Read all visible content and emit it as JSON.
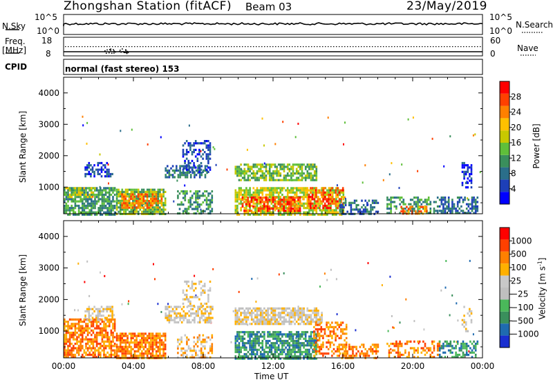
{
  "header": {
    "station": "Zhongshan Station (fitACF)",
    "beam": "Beam 03",
    "date": "23/May/2019",
    "cpid_label": "CPID",
    "cpid_text": "normal (fast stereo) 153"
  },
  "top_panels": {
    "nsky_label": "N.Sky",
    "nsky_ticks": [
      "10^5",
      "10^0"
    ],
    "nsearch_label": "N.Search",
    "nsearch_ticks": [
      "10^5",
      "10^0"
    ],
    "freq_label_1": "Freq.",
    "freq_label_2": "[MHz]",
    "freq_ticks": [
      "18",
      "8"
    ],
    "nave_label": "Nave",
    "nave_ticks": [
      "60",
      "0"
    ]
  },
  "chart_data": [
    {
      "type": "heatmap",
      "name": "power",
      "ylabel": "Slant Range [km]",
      "yticks": [
        1000,
        2000,
        3000,
        4000
      ],
      "ylim": [
        150,
        4500
      ],
      "xlim": [
        0,
        24
      ],
      "colorbar_label": "Power [dB]",
      "colorbar_ticks": [
        "28",
        "24",
        "20",
        "16",
        "12",
        "8",
        "4"
      ],
      "colors": [
        "#0000ff",
        "#1d3fb8",
        "#2a6e8a",
        "#3a8f5c",
        "#5fbf3a",
        "#c8c800",
        "#ffc000",
        "#ff8000",
        "#ff4000",
        "#ff0000"
      ],
      "regions": [
        {
          "x": [
            0.0,
            2.9
          ],
          "y": [
            150,
            1000
          ],
          "level": 3,
          "dens": 0.75
        },
        {
          "x": [
            0.1,
            1.8
          ],
          "y": [
            700,
            1000
          ],
          "level": 5,
          "dens": 0.5
        },
        {
          "x": [
            3.0,
            5.8
          ],
          "y": [
            150,
            950
          ],
          "level": 4,
          "dens": 0.8
        },
        {
          "x": [
            3.3,
            5.6
          ],
          "y": [
            350,
            800
          ],
          "level": 7,
          "dens": 0.6
        },
        {
          "x": [
            1.2,
            2.8
          ],
          "y": [
            1350,
            1800
          ],
          "level": 1,
          "dens": 0.5
        },
        {
          "x": [
            5.8,
            8.2
          ],
          "y": [
            1300,
            1700
          ],
          "level": 2,
          "dens": 0.6
        },
        {
          "x": [
            6.8,
            8.4
          ],
          "y": [
            1500,
            2500
          ],
          "level": 1,
          "dens": 0.45
        },
        {
          "x": [
            6.5,
            8.5
          ],
          "y": [
            150,
            900
          ],
          "level": 3,
          "dens": 0.5
        },
        {
          "x": [
            9.8,
            14.5
          ],
          "y": [
            1250,
            1750
          ],
          "level": 4,
          "dens": 0.7
        },
        {
          "x": [
            9.8,
            16.0
          ],
          "y": [
            150,
            1000
          ],
          "level": 5,
          "dens": 0.7
        },
        {
          "x": [
            10.2,
            13.5
          ],
          "y": [
            250,
            700
          ],
          "level": 8,
          "dens": 0.55
        },
        {
          "x": [
            14.0,
            16.0
          ],
          "y": [
            300,
            1000
          ],
          "level": 8,
          "dens": 0.5
        },
        {
          "x": [
            15.8,
            18.0
          ],
          "y": [
            150,
            600
          ],
          "level": 2,
          "dens": 0.5
        },
        {
          "x": [
            18.5,
            21.5
          ],
          "y": [
            150,
            700
          ],
          "level": 3,
          "dens": 0.45
        },
        {
          "x": [
            19.3,
            20.8
          ],
          "y": [
            150,
            400
          ],
          "level": 7,
          "dens": 0.4
        },
        {
          "x": [
            21.5,
            23.7
          ],
          "y": [
            150,
            700
          ],
          "level": 2,
          "dens": 0.55
        },
        {
          "x": [
            22.8,
            23.4
          ],
          "y": [
            1000,
            1800
          ],
          "level": 1,
          "dens": 0.45
        }
      ]
    },
    {
      "type": "heatmap",
      "name": "velocity",
      "ylabel": "Slant Range [km]",
      "yticks": [
        1000,
        2000,
        3000,
        4000
      ],
      "ylim": [
        150,
        4500
      ],
      "xlim": [
        0,
        24
      ],
      "colorbar_label": "Velocity [m s",
      "colorbar_sup": "-1",
      "colorbar_ticks": [
        "1000",
        "500",
        "100",
        "25",
        "−25",
        "−100",
        "−500",
        "−1000"
      ],
      "colors": [
        "#1a2fd0",
        "#1f6bb0",
        "#3a8f5c",
        "#4ab85a",
        "#bfbfbf",
        "#c8c8c8",
        "#ffb000",
        "#ff8000",
        "#ff4000",
        "#ff0000"
      ],
      "regions": [
        {
          "x": [
            0.0,
            2.9
          ],
          "y": [
            150,
            1400
          ],
          "level": 7,
          "dens": 0.7
        },
        {
          "x": [
            3.0,
            5.8
          ],
          "y": [
            150,
            950
          ],
          "level": 7,
          "dens": 0.8
        },
        {
          "x": [
            1.2,
            2.8
          ],
          "y": [
            1350,
            1800
          ],
          "level": 5,
          "dens": 0.5
        },
        {
          "x": [
            5.8,
            8.5
          ],
          "y": [
            1300,
            1800
          ],
          "level": 5,
          "dens": 0.6
        },
        {
          "x": [
            6.8,
            8.4
          ],
          "y": [
            1800,
            2600
          ],
          "level": 5,
          "dens": 0.35
        },
        {
          "x": [
            6.5,
            8.5
          ],
          "y": [
            150,
            900
          ],
          "level": 6,
          "dens": 0.45
        },
        {
          "x": [
            9.8,
            14.8
          ],
          "y": [
            1250,
            1750
          ],
          "level": 5,
          "dens": 0.75
        },
        {
          "x": [
            9.8,
            14.5
          ],
          "y": [
            150,
            1000
          ],
          "level": 2,
          "dens": 0.75
        },
        {
          "x": [
            14.3,
            16.2
          ],
          "y": [
            200,
            1300
          ],
          "level": 7,
          "dens": 0.5
        },
        {
          "x": [
            15.8,
            18.0
          ],
          "y": [
            150,
            600
          ],
          "level": 7,
          "dens": 0.45
        },
        {
          "x": [
            18.5,
            21.5
          ],
          "y": [
            150,
            700
          ],
          "level": 7,
          "dens": 0.4
        },
        {
          "x": [
            21.5,
            23.7
          ],
          "y": [
            150,
            700
          ],
          "level": 2,
          "dens": 0.55
        },
        {
          "x": [
            22.8,
            23.4
          ],
          "y": [
            1000,
            1800
          ],
          "level": 5,
          "dens": 0.4
        }
      ]
    }
  ],
  "x_axis": {
    "label": "Time UT",
    "ticks": [
      "00:00",
      "04:00",
      "08:00",
      "12:00",
      "16:00",
      "20:00",
      "00:00"
    ]
  }
}
